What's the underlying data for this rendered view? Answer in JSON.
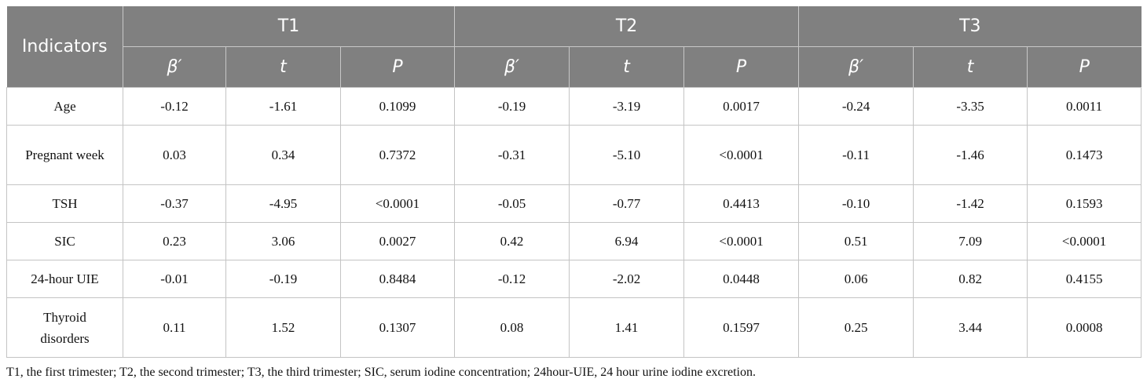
{
  "table": {
    "corner_header": "Indicators",
    "groups": [
      "T1",
      "T2",
      "T3"
    ],
    "subheaders": [
      "β′",
      "t",
      "P"
    ],
    "rows": [
      {
        "indicator": "Age",
        "values": [
          "-0.12",
          "-1.61",
          "0.1099",
          "-0.19",
          "-3.19",
          "0.0017",
          "-0.24",
          "-3.35",
          "0.0011"
        ]
      },
      {
        "indicator": "Pregnant week",
        "values": [
          "0.03",
          "0.34",
          "0.7372",
          "-0.31",
          "-5.10",
          "<0.0001",
          "-0.11",
          "-1.46",
          "0.1473"
        ]
      },
      {
        "indicator": "TSH",
        "values": [
          "-0.37",
          "-4.95",
          "<0.0001",
          "-0.05",
          "-0.77",
          "0.4413",
          "-0.10",
          "-1.42",
          "0.1593"
        ]
      },
      {
        "indicator": "SIC",
        "values": [
          "0.23",
          "3.06",
          "0.0027",
          "0.42",
          "6.94",
          "<0.0001",
          "0.51",
          "7.09",
          "<0.0001"
        ]
      },
      {
        "indicator": "24-hour UIE",
        "values": [
          "-0.01",
          "-0.19",
          "0.8484",
          "-0.12",
          "-2.02",
          "0.0448",
          "0.06",
          "0.82",
          "0.4155"
        ]
      },
      {
        "indicator": "Thyroid disorders",
        "values": [
          "0.11",
          "1.52",
          "0.1307",
          "0.08",
          "1.41",
          "0.1597",
          "0.25",
          "3.44",
          "0.0008"
        ]
      }
    ]
  },
  "footnote": "T1, the first trimester; T2, the second trimester; T3, the third trimester; SIC, serum iodine concentration; 24hour-UIE, 24 hour urine iodine excretion."
}
